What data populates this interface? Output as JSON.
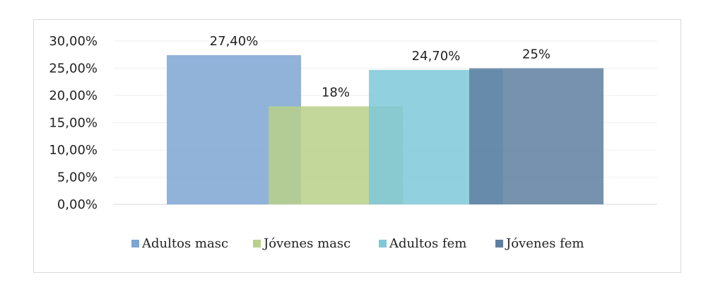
{
  "chart_data": {
    "type": "bar",
    "title": "",
    "xlabel": "",
    "ylabel": "",
    "ylim": [
      0,
      0.3
    ],
    "yticks": [
      "0,00%",
      "5,00%",
      "10,00%",
      "15,00%",
      "20,00%",
      "25,00%",
      "30,00%"
    ],
    "grid": true,
    "legend_position": "bottom",
    "series": [
      {
        "name": "Adultos masc",
        "value": 0.274,
        "label": "27,40%",
        "color": "#7EA6D3"
      },
      {
        "name": "Jóvenes masc",
        "value": 0.18,
        "label": "18%",
        "color": "#B9D08A"
      },
      {
        "name": "Adultos fem",
        "value": 0.247,
        "label": "24,70%",
        "color": "#7EC8D8"
      },
      {
        "name": "Jóvenes fem",
        "value": 0.25,
        "label": "25%",
        "color": "#5F7FA1"
      }
    ]
  }
}
